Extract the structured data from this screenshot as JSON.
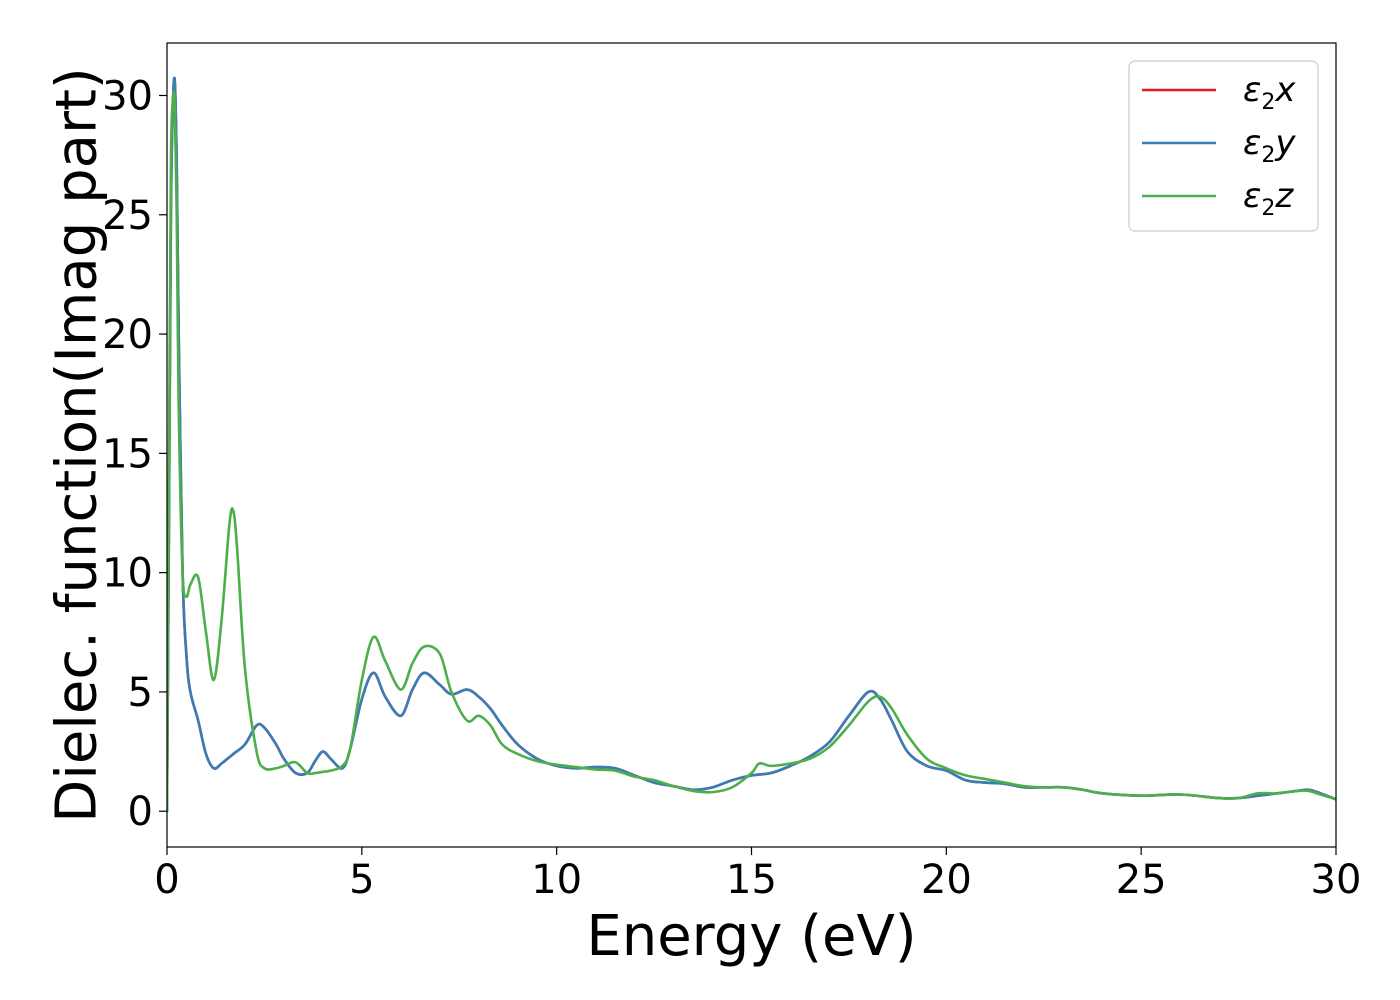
{
  "chart_data": {
    "type": "line",
    "xlabel": "Energy (eV)",
    "ylabel": "Dielec. function(Imag part)",
    "xlim": [
      0,
      30
    ],
    "ylim": [
      -1.5,
      32.2
    ],
    "xticks": [
      0,
      5,
      10,
      15,
      20,
      25,
      30
    ],
    "xtick_labels": [
      "0",
      "5",
      "10",
      "15",
      "20",
      "25",
      "30"
    ],
    "yticks": [
      0,
      5,
      10,
      15,
      20,
      25,
      30
    ],
    "ytick_labels": [
      "0",
      "5",
      "10",
      "15",
      "20",
      "25",
      "30"
    ],
    "grid": false,
    "legend_position": "top-right",
    "series": [
      {
        "name": "ε2x",
        "legend_base": "ε",
        "legend_sub": "2",
        "legend_var": "x",
        "color": "#e41a1c",
        "x": [
          0.0,
          0.05,
          0.1,
          0.15,
          0.2,
          0.25,
          0.3,
          0.4,
          0.5,
          0.6,
          0.8,
          1.0,
          1.2,
          1.4,
          1.7,
          2.0,
          2.3,
          2.5,
          2.8,
          3.0,
          3.3,
          3.6,
          3.8,
          4.0,
          4.2,
          4.5,
          4.7,
          5.0,
          5.3,
          5.6,
          6.0,
          6.3,
          6.6,
          7.0,
          7.3,
          7.7,
          8.0,
          8.3,
          8.6,
          9.0,
          9.5,
          10.0,
          10.5,
          11.0,
          11.5,
          12.0,
          12.5,
          13.0,
          13.5,
          14.0,
          14.5,
          15.0,
          15.5,
          16.0,
          16.5,
          17.0,
          17.5,
          18.0,
          18.3,
          18.6,
          19.0,
          19.5,
          20.0,
          20.5,
          21.0,
          21.5,
          22.0,
          22.5,
          23.0,
          23.5,
          24.0,
          25.0,
          26.0,
          27.0,
          27.5,
          28.0,
          28.5,
          29.0,
          29.3,
          29.6,
          30.0
        ],
        "y": [
          0.0,
          12.0,
          25.0,
          29.5,
          30.6,
          27.0,
          20.0,
          10.0,
          6.5,
          5.0,
          3.8,
          2.4,
          1.8,
          2.0,
          2.4,
          2.8,
          3.6,
          3.5,
          2.8,
          2.2,
          1.6,
          1.6,
          2.1,
          2.5,
          2.2,
          1.8,
          2.6,
          4.7,
          5.8,
          4.8,
          4.0,
          5.1,
          5.8,
          5.3,
          4.9,
          5.1,
          4.8,
          4.3,
          3.6,
          2.8,
          2.2,
          1.9,
          1.8,
          1.85,
          1.8,
          1.5,
          1.2,
          1.05,
          0.9,
          1.0,
          1.3,
          1.5,
          1.6,
          1.9,
          2.3,
          2.9,
          4.0,
          5.0,
          4.7,
          3.8,
          2.5,
          1.9,
          1.7,
          1.3,
          1.2,
          1.15,
          1.0,
          1.0,
          1.0,
          0.9,
          0.75,
          0.65,
          0.7,
          0.55,
          0.55,
          0.65,
          0.75,
          0.85,
          0.9,
          0.75,
          0.5
        ]
      },
      {
        "name": "ε2y",
        "legend_base": "ε",
        "legend_sub": "2",
        "legend_var": "y",
        "color": "#377eb8",
        "x": [
          0.0,
          0.05,
          0.1,
          0.15,
          0.2,
          0.25,
          0.3,
          0.4,
          0.5,
          0.6,
          0.8,
          1.0,
          1.2,
          1.4,
          1.7,
          2.0,
          2.3,
          2.5,
          2.8,
          3.0,
          3.3,
          3.6,
          3.8,
          4.0,
          4.2,
          4.5,
          4.7,
          5.0,
          5.3,
          5.6,
          6.0,
          6.3,
          6.6,
          7.0,
          7.3,
          7.7,
          8.0,
          8.3,
          8.6,
          9.0,
          9.5,
          10.0,
          10.5,
          11.0,
          11.5,
          12.0,
          12.5,
          13.0,
          13.5,
          14.0,
          14.5,
          15.0,
          15.5,
          16.0,
          16.5,
          17.0,
          17.5,
          18.0,
          18.3,
          18.6,
          19.0,
          19.5,
          20.0,
          20.5,
          21.0,
          21.5,
          22.0,
          22.5,
          23.0,
          23.5,
          24.0,
          25.0,
          26.0,
          27.0,
          27.5,
          28.0,
          28.5,
          29.0,
          29.3,
          29.6,
          30.0
        ],
        "y": [
          0.0,
          12.0,
          25.0,
          29.5,
          30.6,
          27.0,
          20.0,
          10.0,
          6.5,
          5.0,
          3.8,
          2.4,
          1.8,
          2.0,
          2.4,
          2.8,
          3.6,
          3.5,
          2.8,
          2.2,
          1.6,
          1.6,
          2.1,
          2.5,
          2.2,
          1.8,
          2.6,
          4.7,
          5.8,
          4.8,
          4.0,
          5.1,
          5.8,
          5.3,
          4.9,
          5.1,
          4.8,
          4.3,
          3.6,
          2.8,
          2.2,
          1.9,
          1.8,
          1.85,
          1.8,
          1.5,
          1.2,
          1.05,
          0.9,
          1.0,
          1.3,
          1.5,
          1.6,
          1.9,
          2.3,
          2.9,
          4.0,
          5.0,
          4.7,
          3.8,
          2.5,
          1.9,
          1.7,
          1.3,
          1.2,
          1.15,
          1.0,
          1.0,
          1.0,
          0.9,
          0.75,
          0.65,
          0.7,
          0.55,
          0.55,
          0.65,
          0.75,
          0.85,
          0.9,
          0.75,
          0.5
        ]
      },
      {
        "name": "ε2z",
        "legend_base": "ε",
        "legend_sub": "2",
        "legend_var": "z",
        "color": "#4daf4a",
        "x": [
          0.0,
          0.05,
          0.1,
          0.15,
          0.2,
          0.25,
          0.3,
          0.4,
          0.5,
          0.6,
          0.8,
          1.0,
          1.2,
          1.4,
          1.6,
          1.7,
          1.8,
          2.0,
          2.3,
          2.5,
          2.8,
          3.0,
          3.3,
          3.6,
          3.8,
          4.0,
          4.2,
          4.5,
          4.7,
          5.0,
          5.3,
          5.6,
          6.0,
          6.3,
          6.6,
          7.0,
          7.3,
          7.7,
          8.0,
          8.3,
          8.6,
          9.0,
          9.5,
          10.0,
          10.5,
          11.0,
          11.5,
          12.0,
          12.5,
          13.0,
          13.5,
          14.0,
          14.5,
          15.0,
          15.2,
          15.5,
          16.0,
          16.5,
          17.0,
          17.5,
          18.0,
          18.3,
          18.6,
          19.0,
          19.5,
          20.0,
          20.5,
          21.0,
          21.5,
          22.0,
          22.5,
          23.0,
          23.5,
          24.0,
          25.0,
          26.0,
          27.0,
          27.5,
          28.0,
          28.5,
          29.0,
          29.3,
          29.6,
          30.0
        ],
        "y": [
          0.0,
          14.0,
          27.0,
          29.8,
          29.6,
          25.0,
          17.0,
          10.0,
          9.0,
          9.5,
          9.8,
          7.5,
          5.5,
          8.0,
          12.0,
          12.6,
          11.0,
          6.0,
          2.5,
          1.8,
          1.8,
          1.9,
          2.05,
          1.6,
          1.6,
          1.65,
          1.7,
          1.9,
          2.6,
          5.5,
          7.3,
          6.3,
          5.1,
          6.2,
          6.9,
          6.6,
          5.0,
          3.8,
          4.0,
          3.6,
          2.8,
          2.4,
          2.1,
          1.95,
          1.85,
          1.75,
          1.7,
          1.45,
          1.3,
          1.05,
          0.85,
          0.8,
          1.0,
          1.6,
          2.0,
          1.9,
          2.0,
          2.2,
          2.7,
          3.6,
          4.6,
          4.8,
          4.3,
          3.2,
          2.2,
          1.8,
          1.5,
          1.35,
          1.2,
          1.05,
          1.0,
          1.0,
          0.9,
          0.75,
          0.65,
          0.7,
          0.55,
          0.55,
          0.75,
          0.75,
          0.85,
          0.85,
          0.7,
          0.5
        ]
      }
    ]
  }
}
